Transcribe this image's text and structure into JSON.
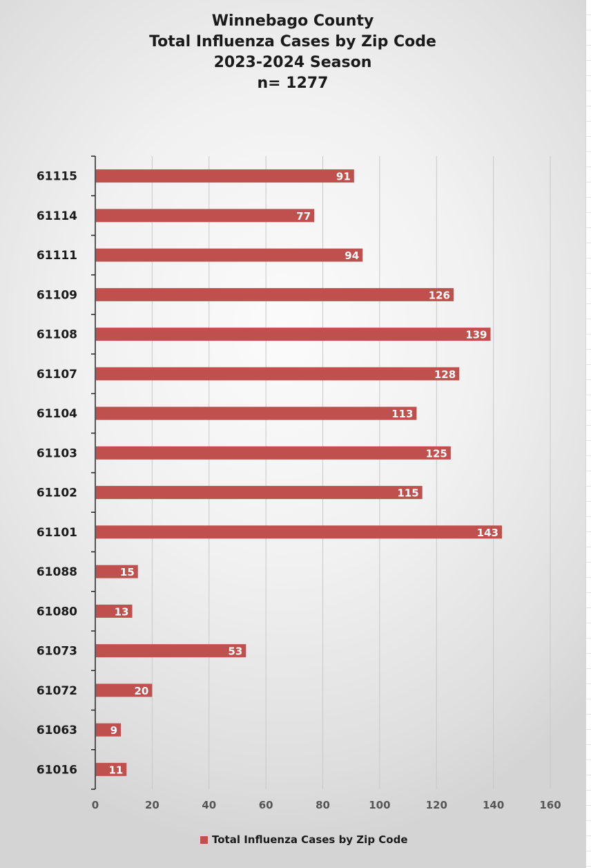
{
  "chart_data": {
    "type": "bar",
    "orientation": "horizontal",
    "title": [
      "Winnebago County",
      "Total Influenza Cases by Zip Code",
      "2023-2024 Season",
      "n= 1277"
    ],
    "categories": [
      "61115",
      "61114",
      "61111",
      "61109",
      "61108",
      "61107",
      "61104",
      "61103",
      "61102",
      "61101",
      "61088",
      "61080",
      "61073",
      "61072",
      "61063",
      "61016"
    ],
    "series": [
      {
        "name": "Total Influenza Cases by Zip Code",
        "values": [
          91,
          77,
          94,
          126,
          139,
          128,
          113,
          125,
          115,
          143,
          15,
          13,
          53,
          20,
          9,
          11
        ],
        "color": "#c0504d"
      }
    ],
    "xlim": [
      0,
      160
    ],
    "x_ticks": [
      "0",
      "20",
      "40",
      "60",
      "80",
      "100",
      "120",
      "140",
      "160"
    ],
    "grid": "vertical",
    "data_labels": "inside-end",
    "legend": "bottom",
    "colors": {
      "bar": "#c0504d",
      "label": "#ffffff",
      "grid": "#c8c8c8",
      "axis": "#222222",
      "text": "#1a1a1a",
      "tick_text": "#555555"
    }
  },
  "legend": {
    "label": "Total Influenza Cases by Zip Code"
  }
}
